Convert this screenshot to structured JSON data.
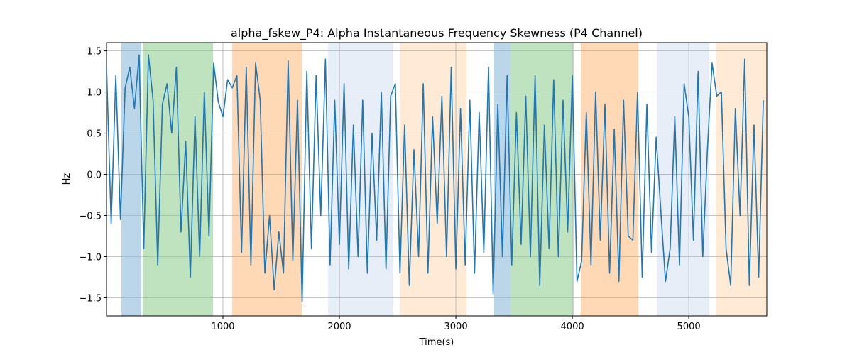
{
  "chart_data": {
    "type": "line",
    "title": "alpha_fskew_P4: Alpha Instantaneous Frequency Skewness (P4 Channel)",
    "xlabel": "Time(s)",
    "ylabel": "Hz",
    "xlim": [
      0,
      5670
    ],
    "ylim": [
      -1.72,
      1.6
    ],
    "xticks": [
      1000,
      2000,
      3000,
      4000,
      5000
    ],
    "yticks": [
      {
        "value": -1.5,
        "label": "−1.5"
      },
      {
        "value": -1.0,
        "label": "−1.0"
      },
      {
        "value": -0.5,
        "label": "−0.5"
      },
      {
        "value": 0,
        "label": "0.0"
      },
      0.5,
      {
        "value": 1.0,
        "label": "1.0"
      },
      1.5
    ],
    "grid": true,
    "spans": [
      {
        "start": 128,
        "end": 299,
        "color": "#1f77b4",
        "opacity": 0.3
      },
      {
        "start": 311,
        "end": 915,
        "color": "#2ca02c",
        "opacity": 0.3
      },
      {
        "start": 1079,
        "end": 1677,
        "color": "#ff7f0e",
        "opacity": 0.3
      },
      {
        "start": 1902,
        "end": 2463,
        "color": "#aec7e8",
        "opacity": 0.3
      },
      {
        "start": 2518,
        "end": 3091,
        "color": "#ffbb78",
        "opacity": 0.3
      },
      {
        "start": 3329,
        "end": 3470,
        "color": "#1f77b4",
        "opacity": 0.3
      },
      {
        "start": 3470,
        "end": 4012,
        "color": "#2ca02c",
        "opacity": 0.3
      },
      {
        "start": 4073,
        "end": 4567,
        "color": "#ff7f0e",
        "opacity": 0.3
      },
      {
        "start": 4726,
        "end": 5177,
        "color": "#aec7e8",
        "opacity": 0.3
      },
      {
        "start": 5232,
        "end": 5677,
        "color": "#ffbb78",
        "opacity": 0.3
      }
    ],
    "x": [
      0,
      40,
      80,
      120,
      160,
      200,
      240,
      280,
      320,
      360,
      400,
      440,
      480,
      520,
      560,
      600,
      640,
      680,
      720,
      760,
      800,
      840,
      880,
      920,
      960,
      1000,
      1040,
      1080,
      1120,
      1160,
      1200,
      1240,
      1280,
      1320,
      1360,
      1400,
      1440,
      1480,
      1520,
      1560,
      1600,
      1640,
      1680,
      1720,
      1760,
      1800,
      1840,
      1880,
      1920,
      1960,
      2000,
      2040,
      2080,
      2120,
      2160,
      2200,
      2240,
      2280,
      2320,
      2360,
      2400,
      2440,
      2480,
      2520,
      2560,
      2600,
      2640,
      2680,
      2720,
      2760,
      2800,
      2840,
      2880,
      2920,
      2960,
      3000,
      3040,
      3080,
      3120,
      3160,
      3200,
      3240,
      3280,
      3320,
      3360,
      3400,
      3440,
      3480,
      3520,
      3560,
      3600,
      3640,
      3680,
      3720,
      3760,
      3800,
      3840,
      3880,
      3920,
      3960,
      4000,
      4040,
      4080,
      4120,
      4160,
      4200,
      4240,
      4280,
      4320,
      4360,
      4400,
      4440,
      4480,
      4520,
      4560,
      4600,
      4640,
      4680,
      4720,
      4760,
      4800,
      4840,
      4880,
      4920,
      4960,
      5000,
      5040,
      5080,
      5120,
      5160,
      5200,
      5240,
      5280,
      5320,
      5360,
      5400,
      5440,
      5480,
      5520,
      5560,
      5600,
      5640
    ],
    "series": [
      {
        "color": "#1f77b4",
        "values": [
          1.32,
          -0.6,
          1.2,
          -0.55,
          1.05,
          1.3,
          0.8,
          1.45,
          -0.9,
          1.45,
          0.9,
          -1.1,
          0.85,
          1.1,
          0.5,
          1.3,
          -0.7,
          0.4,
          -1.25,
          0.7,
          -1.0,
          1.0,
          -0.75,
          1.35,
          0.88,
          0.7,
          1.15,
          1.05,
          1.2,
          -0.95,
          1.3,
          -1.1,
          1.35,
          0.9,
          -1.2,
          -0.5,
          -1.4,
          -0.7,
          -1.2,
          1.38,
          -1.05,
          0.9,
          -1.55,
          1.25,
          -0.9,
          1.2,
          -0.5,
          1.4,
          -1.1,
          0.9,
          -0.85,
          1.1,
          -1.15,
          0.6,
          -1.0,
          0.9,
          -1.2,
          0.5,
          -0.8,
          1.0,
          -1.15,
          0.95,
          1.1,
          -1.2,
          0.6,
          -1.35,
          0.3,
          -1.0,
          1.1,
          -1.2,
          0.7,
          -0.6,
          0.95,
          -1.0,
          1.3,
          -1.15,
          0.8,
          -1.1,
          0.9,
          -1.2,
          0.75,
          -0.95,
          1.3,
          -1.45,
          0.85,
          -1.0,
          1.2,
          -1.1,
          0.75,
          -0.85,
          0.95,
          -1.0,
          1.2,
          -1.35,
          0.6,
          -0.9,
          1.15,
          -1.0,
          0.9,
          -0.7,
          1.2,
          -1.3,
          -1.05,
          0.75,
          -1.1,
          1.0,
          -0.8,
          0.85,
          -1.2,
          0.55,
          -1.3,
          0.9,
          -0.75,
          -0.8,
          1.0,
          -1.25,
          0.85,
          -0.95,
          0.45,
          -0.45,
          -1.3,
          -0.9,
          0.7,
          -1.1,
          1.1,
          0.7,
          -0.8,
          1.25,
          -1.0,
          0.3,
          1.35,
          0.95,
          1.0,
          -0.9,
          -1.35,
          0.8,
          -0.5,
          1.4,
          -1.35,
          0.6,
          -1.25,
          0.9
        ]
      }
    ]
  }
}
